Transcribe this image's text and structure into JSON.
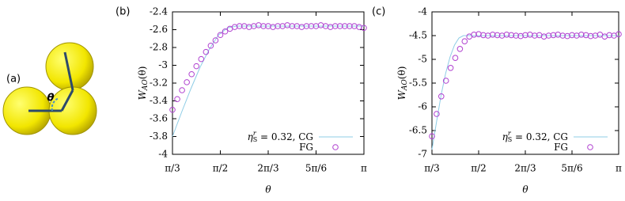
{
  "panel_labels": [
    "(a)",
    "(b)",
    "(c)"
  ],
  "diagram": {
    "angle_label": "θ"
  },
  "chart_data": [
    {
      "type": "line",
      "xlabel": "θ",
      "ylabel": {
        "symbol": "W",
        "subscript": "AO",
        "argument": "(θ)"
      },
      "legend_prefix": {
        "symbol": "η",
        "superscript": "r",
        "subscript": "S",
        "text": " = 0.32, "
      },
      "xlim": [
        1.0472,
        3.1416
      ],
      "xticks": [
        {
          "value": 1.0472,
          "label": "π/3"
        },
        {
          "value": 1.5708,
          "label": "π/2"
        },
        {
          "value": 2.0944,
          "label": "2π/3"
        },
        {
          "value": 2.618,
          "label": "5π/6"
        },
        {
          "value": 3.1416,
          "label": "π"
        }
      ],
      "ylim": [
        -4,
        -2.4
      ],
      "yticks": [
        -4,
        -3.8,
        -3.6,
        -3.4,
        -3.2,
        -3,
        -2.8,
        -2.6,
        -2.4
      ],
      "series": [
        {
          "name": "CG",
          "color": "#8fcde6",
          "style": "line",
          "x": [
            1.0472,
            1.15,
            1.25,
            1.35,
            1.45,
            1.55,
            1.65,
            1.75,
            2.0,
            2.5,
            3.1416
          ],
          "values": [
            -3.8,
            -3.52,
            -3.26,
            -3.02,
            -2.82,
            -2.66,
            -2.58,
            -2.56,
            -2.56,
            -2.56,
            -2.56
          ]
        },
        {
          "name": "FG",
          "color": "#b040d0",
          "style": "points",
          "x": [
            1.0472,
            1.0996,
            1.1519,
            1.2043,
            1.2566,
            1.309,
            1.3614,
            1.4137,
            1.4661,
            1.5184,
            1.5708,
            1.6232,
            1.6755,
            1.7279,
            1.7802,
            1.8326,
            1.885,
            1.9373,
            1.9897,
            2.042,
            2.0944,
            2.1468,
            2.1991,
            2.2515,
            2.3038,
            2.3562,
            2.4086,
            2.4609,
            2.5133,
            2.5656,
            2.618,
            2.6704,
            2.7227,
            2.7751,
            2.8274,
            2.8798,
            2.9322,
            2.9845,
            3.0369,
            3.0892,
            3.1416
          ],
          "values": [
            -3.5,
            -3.38,
            -3.28,
            -3.19,
            -3.1,
            -3.01,
            -2.93,
            -2.85,
            -2.78,
            -2.72,
            -2.66,
            -2.62,
            -2.59,
            -2.57,
            -2.56,
            -2.56,
            -2.57,
            -2.56,
            -2.55,
            -2.56,
            -2.56,
            -2.57,
            -2.56,
            -2.56,
            -2.55,
            -2.56,
            -2.56,
            -2.57,
            -2.56,
            -2.56,
            -2.56,
            -2.55,
            -2.56,
            -2.57,
            -2.56,
            -2.56,
            -2.56,
            -2.56,
            -2.56,
            -2.57,
            -2.58
          ]
        }
      ]
    },
    {
      "type": "line",
      "xlabel": "θ",
      "ylabel": {
        "symbol": "W",
        "subscript": "AO",
        "argument": "(θ)"
      },
      "legend_prefix": {
        "symbol": "η",
        "superscript": "r",
        "subscript": "S",
        "text": " = 0.32, "
      },
      "xlim": [
        1.0472,
        3.1416
      ],
      "xticks": [
        {
          "value": 1.0472,
          "label": "π/3"
        },
        {
          "value": 1.5708,
          "label": "π/2"
        },
        {
          "value": 2.0944,
          "label": "2π/3"
        },
        {
          "value": 2.618,
          "label": "5π/6"
        },
        {
          "value": 3.1416,
          "label": "π"
        }
      ],
      "ylim": [
        -7,
        -4
      ],
      "yticks": [
        -7,
        -6.5,
        -6,
        -5.5,
        -5,
        -4.5,
        -4
      ],
      "series": [
        {
          "name": "CG",
          "color": "#8fcde6",
          "style": "line",
          "x": [
            1.0472,
            1.1,
            1.15,
            1.2,
            1.25,
            1.3,
            1.35,
            1.4,
            2.0,
            3.1416
          ],
          "values": [
            -6.9,
            -6.3,
            -5.75,
            -5.3,
            -4.95,
            -4.7,
            -4.55,
            -4.5,
            -4.5,
            -4.5
          ]
        },
        {
          "name": "FG",
          "color": "#b040d0",
          "style": "points",
          "x": [
            1.0472,
            1.0996,
            1.1519,
            1.2043,
            1.2566,
            1.309,
            1.3614,
            1.4137,
            1.4661,
            1.5184,
            1.5708,
            1.6232,
            1.6755,
            1.7279,
            1.7802,
            1.8326,
            1.885,
            1.9373,
            1.9897,
            2.042,
            2.0944,
            2.1468,
            2.1991,
            2.2515,
            2.3038,
            2.3562,
            2.4086,
            2.4609,
            2.5133,
            2.5656,
            2.618,
            2.6704,
            2.7227,
            2.7751,
            2.8274,
            2.8798,
            2.9322,
            2.9845,
            3.0369,
            3.0892,
            3.1416
          ],
          "values": [
            -6.62,
            -6.15,
            -5.78,
            -5.45,
            -5.18,
            -4.97,
            -4.78,
            -4.62,
            -4.52,
            -4.48,
            -4.47,
            -4.49,
            -4.5,
            -4.48,
            -4.49,
            -4.5,
            -4.48,
            -4.49,
            -4.5,
            -4.51,
            -4.49,
            -4.48,
            -4.5,
            -4.49,
            -4.52,
            -4.5,
            -4.49,
            -4.48,
            -4.5,
            -4.51,
            -4.49,
            -4.5,
            -4.48,
            -4.49,
            -4.51,
            -4.5,
            -4.48,
            -4.52,
            -4.49,
            -4.5,
            -4.47
          ]
        }
      ]
    }
  ]
}
